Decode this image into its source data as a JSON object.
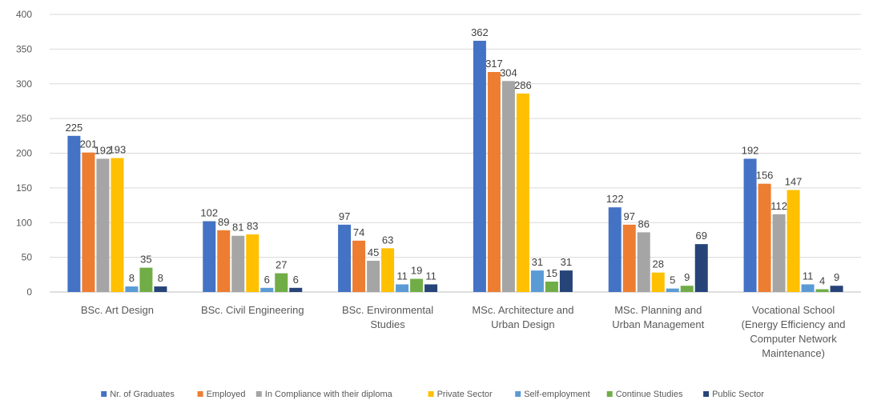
{
  "chart_data": {
    "type": "bar",
    "title": "",
    "xlabel": "",
    "ylabel": "",
    "ylim": [
      0,
      400
    ],
    "yticks": [
      0,
      50,
      100,
      150,
      200,
      250,
      300,
      350,
      400
    ],
    "grid": true,
    "legend_position": "bottom",
    "categories": [
      [
        "BSc. Art Design"
      ],
      [
        "BSc. Civil Engineering"
      ],
      [
        "BSc. Environmental",
        "Studies"
      ],
      [
        "MSc. Architecture and",
        "Urban Design"
      ],
      [
        "MSc. Planning and",
        "Urban Management"
      ],
      [
        "Vocational School",
        "(Energy Efficiency and",
        "Computer Network",
        "Maintenance)"
      ]
    ],
    "series": [
      {
        "name": "Nr. of Graduates",
        "color": "#4472c4",
        "values": [
          225,
          102,
          97,
          362,
          122,
          192
        ]
      },
      {
        "name": "Employed",
        "color": "#ed7d31",
        "values": [
          201,
          89,
          74,
          317,
          97,
          156
        ]
      },
      {
        "name": "In Compliance with their diploma",
        "color": "#a5a5a5",
        "values": [
          192,
          81,
          45,
          304,
          86,
          112
        ]
      },
      {
        "name": "Private Sector",
        "color": "#ffc000",
        "values": [
          193,
          83,
          63,
          286,
          28,
          147
        ]
      },
      {
        "name": "Self-employment",
        "color": "#5b9bd5",
        "values": [
          8,
          6,
          11,
          31,
          5,
          11
        ]
      },
      {
        "name": "Continue Studies",
        "color": "#70ad47",
        "values": [
          35,
          27,
          19,
          15,
          9,
          4
        ]
      },
      {
        "name": "Public Sector",
        "color": "#264478",
        "values": [
          8,
          6,
          11,
          31,
          69,
          9
        ]
      }
    ]
  }
}
